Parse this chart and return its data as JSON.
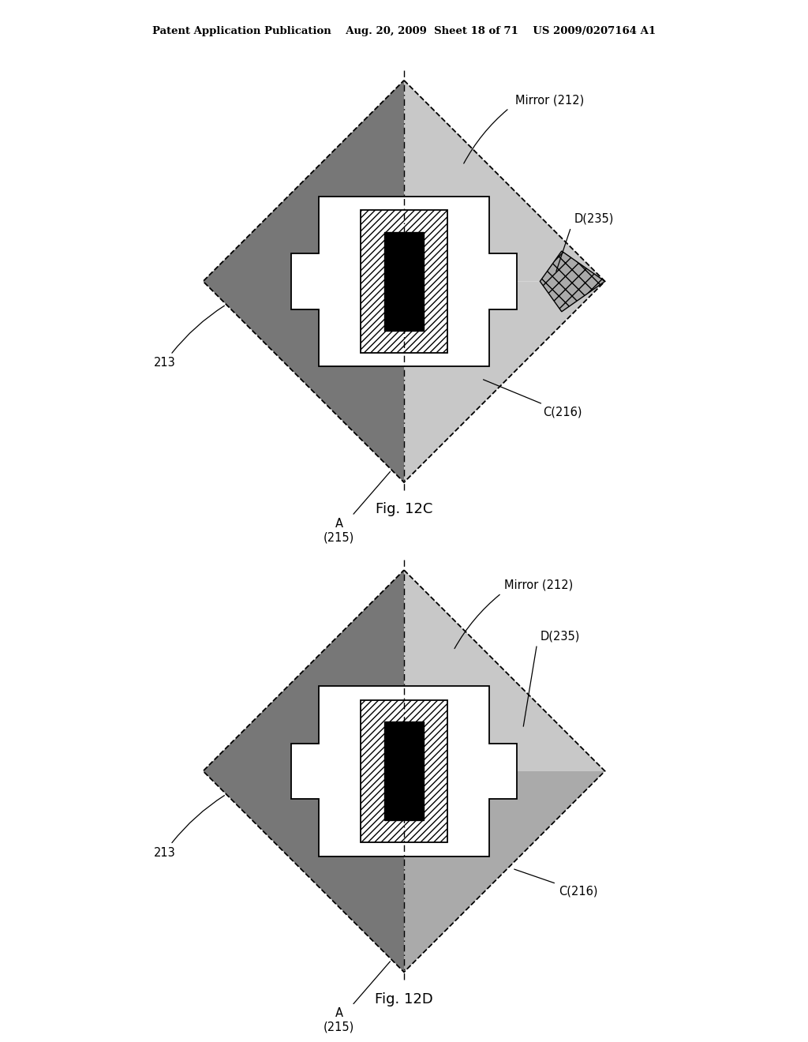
{
  "title_header": "Patent Application Publication    Aug. 20, 2009  Sheet 18 of 71    US 2009/0207164 A1",
  "fig_c_label": "Fig. 12C",
  "fig_d_label": "Fig. 12D",
  "background_color": "#ffffff",
  "dark_gray": "#555555",
  "medium_gray": "#777777",
  "light_dot": "#c8c8c8",
  "crosshatch_gray": "#aaaaaa"
}
